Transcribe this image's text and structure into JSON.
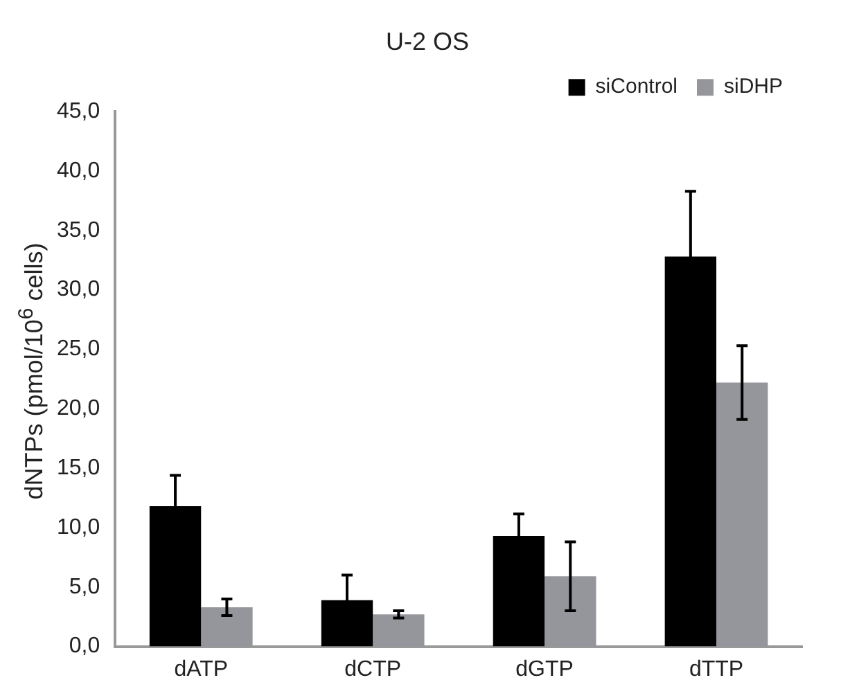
{
  "chart_data": {
    "type": "bar",
    "title": "U-2 OS",
    "ylabel": "dNTPs (pmol/10$^{6}$ cells)",
    "categories": [
      "dATP",
      "dCTP",
      "dGTP",
      "dTTP"
    ],
    "series": [
      {
        "name": "siControl",
        "color": "#000000",
        "values": [
          11.8,
          3.9,
          9.3,
          32.8
        ],
        "errors": [
          2.6,
          2.1,
          1.85,
          5.5
        ]
      },
      {
        "name": "siDHP",
        "color": "#94969b",
        "values": [
          3.3,
          2.7,
          5.9,
          22.2
        ],
        "errors": [
          0.7,
          0.3,
          2.9,
          3.1
        ]
      }
    ],
    "ylim": [
      0,
      45
    ],
    "yticks": [
      {
        "value": 0,
        "label": "0,0"
      },
      {
        "value": 5,
        "label": "5,0"
      },
      {
        "value": 10,
        "label": "10,0"
      },
      {
        "value": 15,
        "label": "15,0"
      },
      {
        "value": 20,
        "label": "20,0"
      },
      {
        "value": 25,
        "label": "25,0"
      },
      {
        "value": 30,
        "label": "30,0"
      },
      {
        "value": 35,
        "label": "35,0"
      },
      {
        "value": 40,
        "label": "40,0"
      },
      {
        "value": 45,
        "label": "45,0"
      }
    ],
    "grid": false,
    "legend": "top right"
  }
}
